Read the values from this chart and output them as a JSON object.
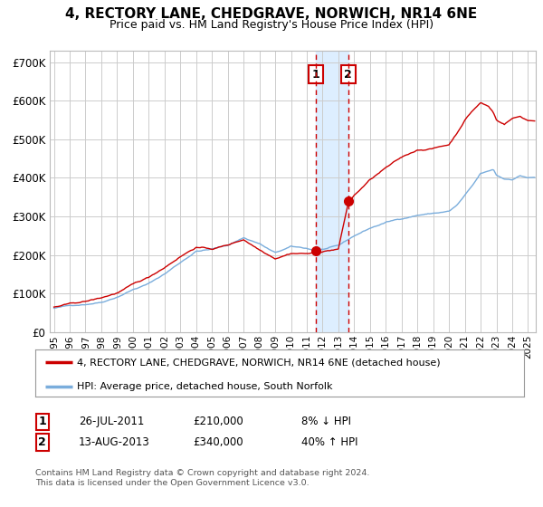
{
  "title": "4, RECTORY LANE, CHEDGRAVE, NORWICH, NR14 6NE",
  "subtitle": "Price paid vs. HM Land Registry's House Price Index (HPI)",
  "ylabel_ticks": [
    "£0",
    "£100K",
    "£200K",
    "£300K",
    "£400K",
    "£500K",
    "£600K",
    "£700K"
  ],
  "ytick_vals": [
    0,
    100000,
    200000,
    300000,
    400000,
    500000,
    600000,
    700000
  ],
  "ylim": [
    0,
    730000
  ],
  "xlim_start": 1994.75,
  "xlim_end": 2025.5,
  "sale1_x": 2011.57,
  "sale1_y": 210000,
  "sale1_label": "1",
  "sale1_date": "26-JUL-2011",
  "sale1_price": "£210,000",
  "sale1_hpi": "8% ↓ HPI",
  "sale2_x": 2013.62,
  "sale2_y": 340000,
  "sale2_label": "2",
  "sale2_date": "13-AUG-2013",
  "sale2_price": "£340,000",
  "sale2_hpi": "40% ↑ HPI",
  "red_line_color": "#cc0000",
  "blue_line_color": "#7aaddc",
  "shade_color": "#ddeeff",
  "dashed_color": "#cc0000",
  "legend1_label": "4, RECTORY LANE, CHEDGRAVE, NORWICH, NR14 6NE (detached house)",
  "legend2_label": "HPI: Average price, detached house, South Norfolk",
  "footnote1": "Contains HM Land Registry data © Crown copyright and database right 2024.",
  "footnote2": "This data is licensed under the Open Government Licence v3.0.",
  "bg_color": "#ffffff",
  "plot_bg_color": "#ffffff",
  "grid_color": "#cccccc"
}
